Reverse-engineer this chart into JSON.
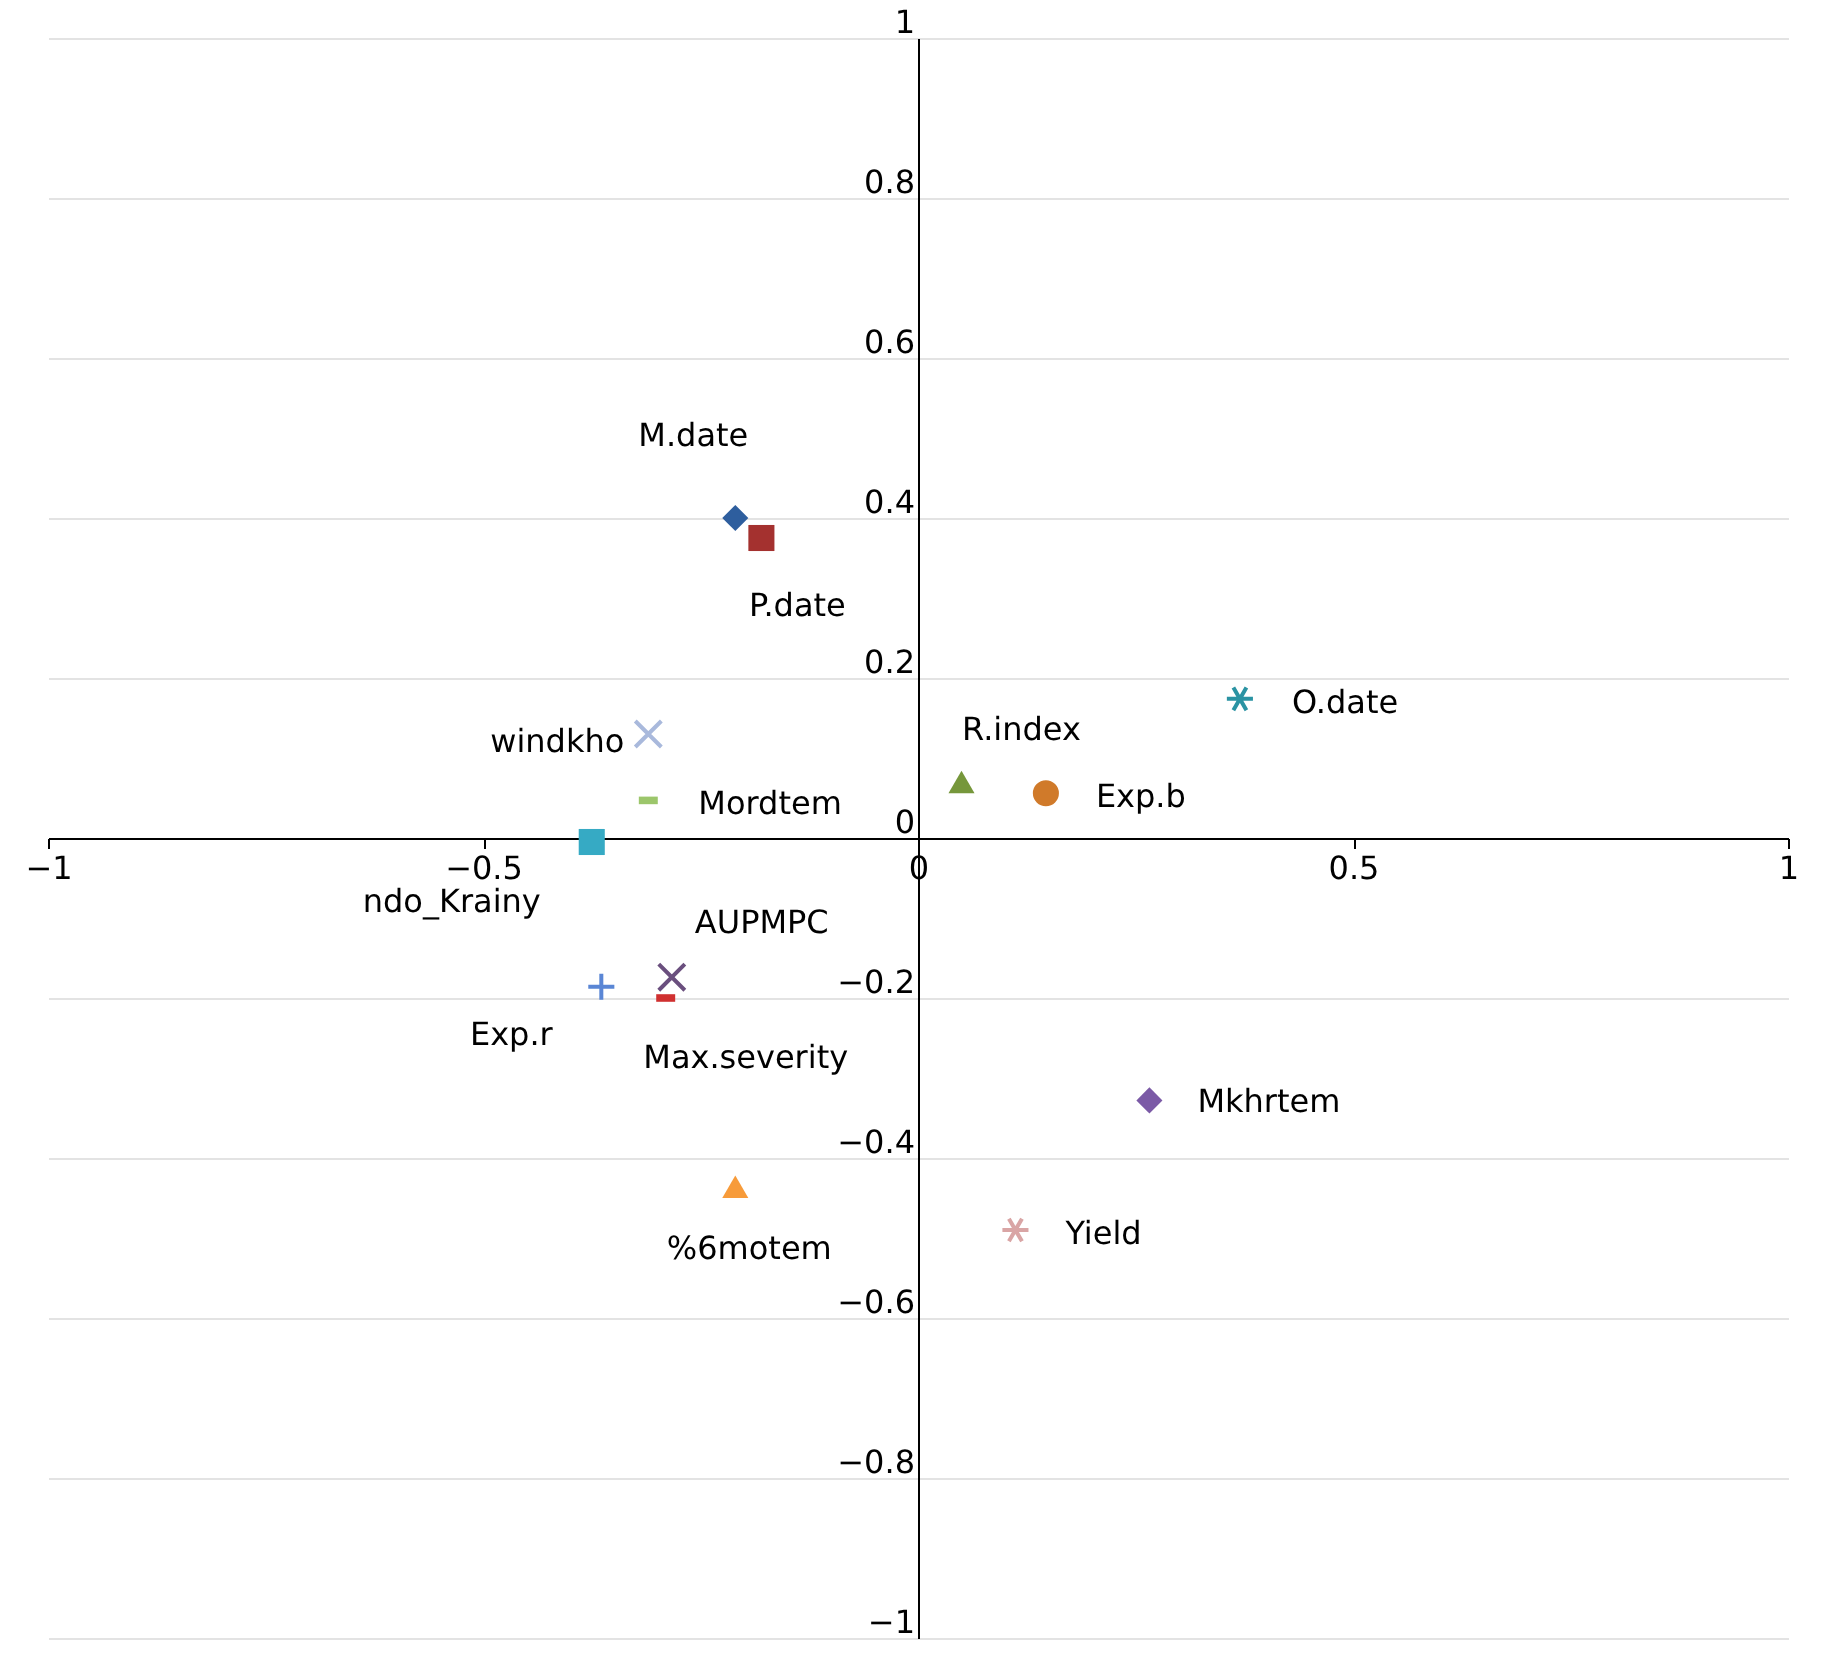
{
  "chart_data": {
    "type": "scatter",
    "xlim": [
      -1,
      1
    ],
    "ylim": [
      -1,
      1
    ],
    "xticks": [
      -1,
      -0.5,
      0,
      0.5,
      1
    ],
    "yticks": [
      -1,
      -0.8,
      -0.6,
      -0.4,
      -0.2,
      0,
      0.2,
      0.4,
      0.6,
      0.8,
      1
    ],
    "grid": "y",
    "series": [
      {
        "name": "M.date",
        "color": "#2e5e9e",
        "x": [
          -0.21
        ],
        "values": [
          0.4
        ],
        "marker": "diamond"
      },
      {
        "name": "P.date",
        "color": "#a4312f",
        "x": [
          -0.18
        ],
        "values": [
          0.375
        ],
        "marker": "square"
      },
      {
        "name": "O.date",
        "color": "#2a93a3",
        "x": [
          0.37
        ],
        "values": [
          0.174
        ],
        "marker": "cross"
      },
      {
        "name": "windkho",
        "color": "#a9b9dc",
        "x": [
          -0.31
        ],
        "values": [
          0.13
        ],
        "marker": "cross"
      },
      {
        "name": "Mordtem",
        "color": "#9cc66b",
        "x": [
          -0.31
        ],
        "values": [
          0.047
        ],
        "marker": "square"
      },
      {
        "name": "R.index",
        "color": "#76973b",
        "x": [
          0.05
        ],
        "values": [
          0.07
        ],
        "marker": "triangle"
      },
      {
        "name": "Exp.b",
        "color": "#d07a2a",
        "x": [
          0.147
        ],
        "values": [
          0.056
        ],
        "marker": "circle"
      },
      {
        "name": "ndo_Krainy",
        "color": "#36aac4",
        "x": [
          -0.375
        ],
        "values": [
          -0.005
        ],
        "marker": "square"
      },
      {
        "name": "AUPMPC",
        "color": "#6a4f7e",
        "x": [
          -0.283
        ],
        "values": [
          -0.174
        ],
        "marker": "cross"
      },
      {
        "name": "Exp.r",
        "color": "#5a86d5",
        "x": [
          -0.364
        ],
        "values": [
          -0.186
        ],
        "marker": "cross"
      },
      {
        "name": "Max.severity",
        "color": "#d03030",
        "x": [
          -0.29
        ],
        "values": [
          -0.2
        ],
        "marker": "square"
      },
      {
        "name": "Mkhrtem",
        "color": "#7b5aa6",
        "x": [
          0.266
        ],
        "values": [
          -0.328
        ],
        "marker": "diamond"
      },
      {
        "name": "%6motem",
        "color": "#f79b3a",
        "x": [
          -0.21
        ],
        "values": [
          -0.436
        ],
        "marker": "triangle"
      },
      {
        "name": "Yield",
        "color": "#d9a5a5",
        "x": [
          0.112
        ],
        "values": [
          -0.49
        ],
        "marker": "cross"
      }
    ]
  }
}
